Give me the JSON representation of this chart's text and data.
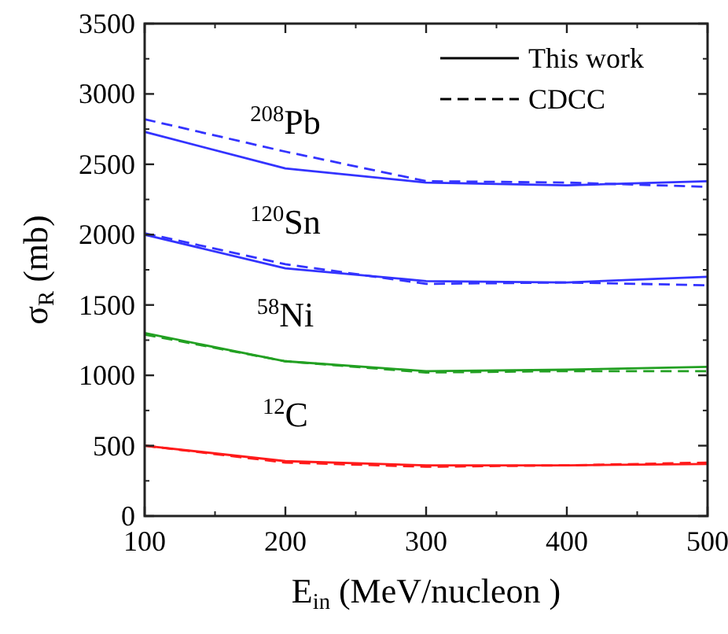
{
  "chart_data": {
    "type": "line",
    "xlabel": "E$_{in}$ (MeV/nucleon )",
    "ylabel": "σ$_{R}$ (mb)",
    "x": [
      100,
      200,
      300,
      400,
      500
    ],
    "xlim": [
      100,
      500
    ],
    "xticks": [
      100,
      200,
      300,
      400,
      500
    ],
    "ylim": [
      0,
      3500
    ],
    "yticks": [
      0,
      500,
      1000,
      1500,
      2000,
      2500,
      3000,
      3500
    ],
    "grid": false,
    "marker": "none",
    "series": [
      {
        "name": "$^{208}$Pb",
        "color": "#3333ff",
        "line_style": "solid",
        "values": [
          2730,
          2470,
          2370,
          2350,
          2380
        ]
      },
      {
        "color": "#3333ff",
        "line_style": "dashed",
        "values": [
          2820,
          2590,
          2380,
          2370,
          2340
        ]
      },
      {
        "name": "$^{120}$Sn",
        "color": "#3333ff",
        "line_style": "solid",
        "values": [
          2000,
          1760,
          1670,
          1660,
          1700
        ]
      },
      {
        "color": "#3333ff",
        "line_style": "dashed",
        "values": [
          2010,
          1790,
          1650,
          1660,
          1640
        ]
      },
      {
        "name": "$^{58}$Ni",
        "color": "#22a022",
        "line_style": "solid",
        "values": [
          1300,
          1100,
          1030,
          1040,
          1060
        ]
      },
      {
        "color": "#22a022",
        "line_style": "dashed",
        "values": [
          1290,
          1100,
          1020,
          1030,
          1030
        ]
      },
      {
        "name": "$^{12}$C",
        "color": "#ff1a1a",
        "line_style": "solid",
        "values": [
          500,
          390,
          360,
          360,
          370
        ]
      },
      {
        "color": "#ff1a1a",
        "line_style": "dashed",
        "values": [
          500,
          380,
          350,
          360,
          380
        ]
      }
    ],
    "annotations": [
      "This work",
      "CDCC"
    ]
  }
}
